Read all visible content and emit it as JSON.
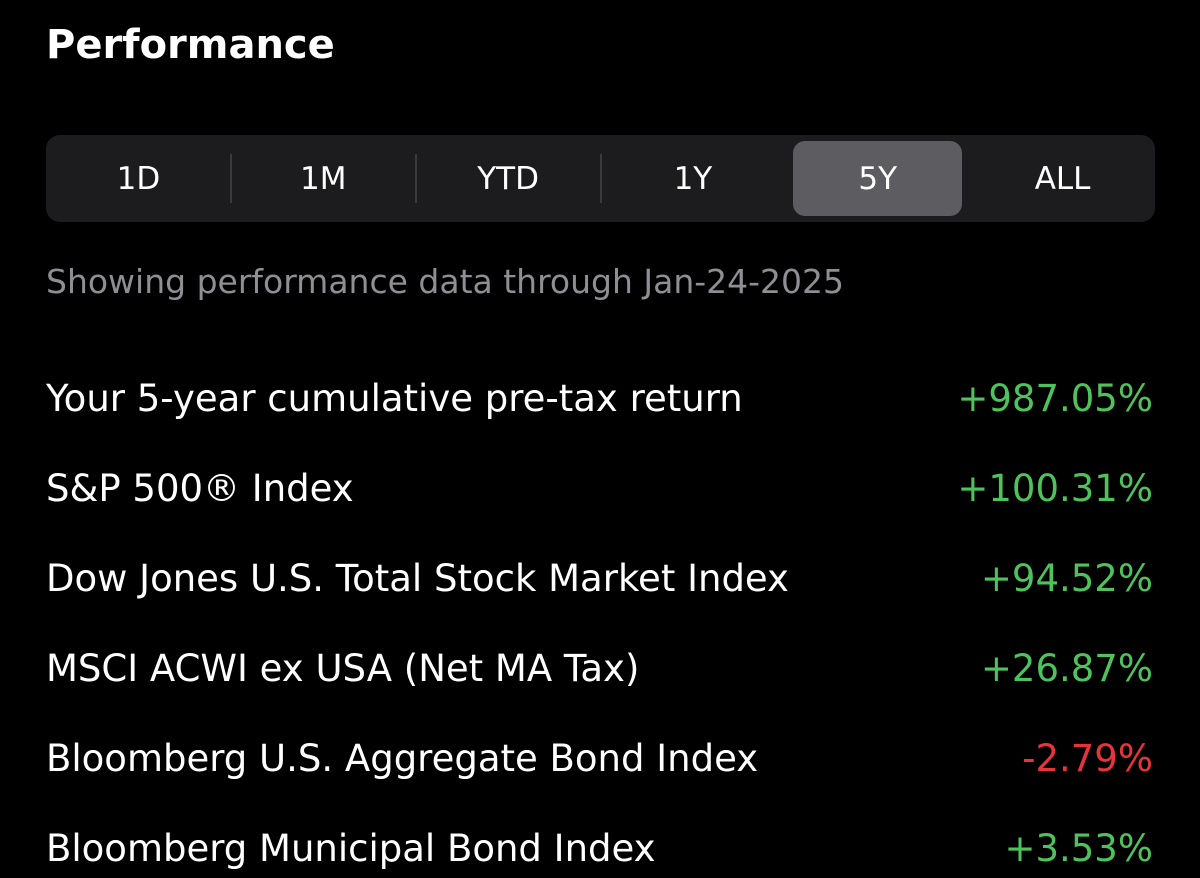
{
  "header": {
    "title": "Performance"
  },
  "tabs": {
    "items": [
      "1D",
      "1M",
      "YTD",
      "1Y",
      "5Y",
      "ALL"
    ],
    "selected": 4
  },
  "subtitle": "Showing performance data through Jan-24-2025",
  "rows": [
    {
      "label": "Your 5-year cumulative pre-tax return",
      "value": "+987.05%"
    },
    {
      "label": "S&P 500® Index",
      "value": "+100.31%"
    },
    {
      "label": "Dow Jones U.S. Total Stock Market Index",
      "value": "+94.52%"
    },
    {
      "label": "MSCI ACWI ex USA (Net MA Tax)",
      "value": "+26.87%"
    },
    {
      "label": "Bloomberg U.S. Aggregate Bond Index",
      "value": "-2.79%"
    },
    {
      "label": "Bloomberg Municipal Bond Index",
      "value": "+3.53%"
    }
  ]
}
